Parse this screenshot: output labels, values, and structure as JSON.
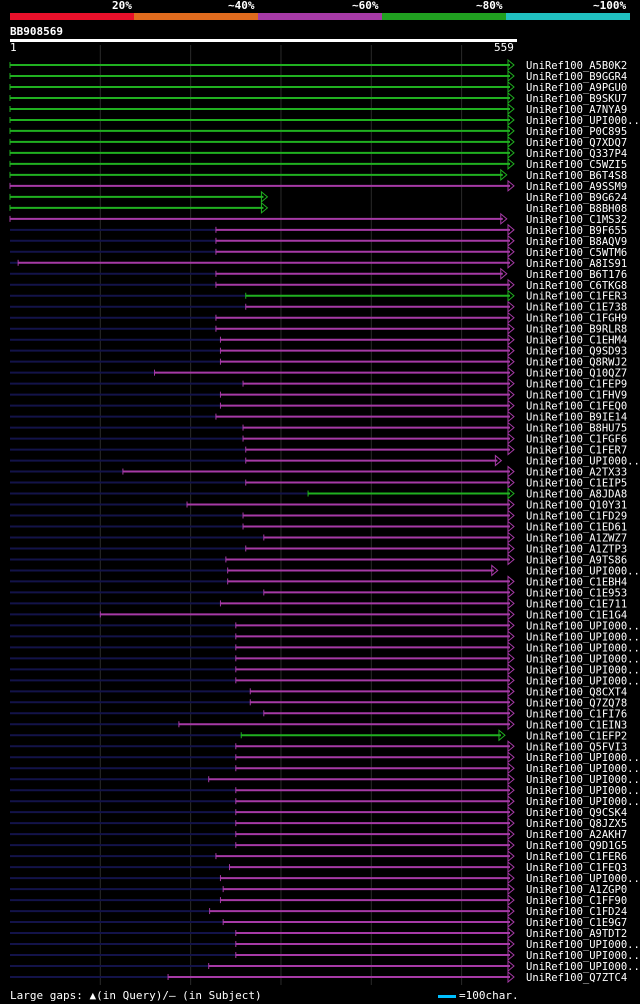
{
  "legend": {
    "labels": [
      "20%",
      "~40%",
      "~60%",
      "~80%",
      "~100%"
    ],
    "colors": [
      "#e8102a",
      "#e06b1e",
      "#a63aa6",
      "#20a020",
      "#20c0c0"
    ]
  },
  "query": {
    "id": "BB908569",
    "start": "1",
    "end": "559"
  },
  "footer": {
    "gaps_text": "Large gaps: ▲(in Query)/— (in Subject)",
    "scale_text": "=100char."
  },
  "chart_data": {
    "type": "alignment",
    "query_length": 559,
    "hits": [
      {
        "label": "UniRef100_A5B0K2",
        "color": "green",
        "start": 1,
        "end": 559,
        "arrow": true
      },
      {
        "label": "UniRef100_B9GGR4",
        "color": "green",
        "start": 1,
        "end": 559,
        "arrow": true
      },
      {
        "label": "UniRef100_A9PGU0",
        "color": "green",
        "start": 1,
        "end": 559,
        "arrow": true
      },
      {
        "label": "UniRef100_B9SKU7",
        "color": "green",
        "start": 1,
        "end": 559,
        "arrow": true
      },
      {
        "label": "UniRef100_A7NYA9",
        "color": "green",
        "start": 1,
        "end": 559,
        "arrow": true
      },
      {
        "label": "UniRef100_UPI000..",
        "color": "green",
        "start": 1,
        "end": 559,
        "arrow": true
      },
      {
        "label": "UniRef100_P0C895",
        "color": "green",
        "start": 1,
        "end": 559,
        "arrow": true
      },
      {
        "label": "UniRef100_Q7XDQ7",
        "color": "green",
        "start": 1,
        "end": 559,
        "arrow": true
      },
      {
        "label": "UniRef100_Q337P4",
        "color": "green",
        "start": 1,
        "end": 559,
        "arrow": true
      },
      {
        "label": "UniRef100_C5WZI5",
        "color": "green",
        "start": 1,
        "end": 559,
        "arrow": true
      },
      {
        "label": "UniRef100_B6T4S8",
        "color": "green",
        "start": 1,
        "end": 551,
        "arrow": true
      },
      {
        "label": "UniRef100_A9SSM9",
        "color": "magenta",
        "start": 1,
        "end": 559,
        "arrow": true
      },
      {
        "label": "UniRef100_B9G624",
        "color": "green",
        "start": 1,
        "end": 286,
        "arrow": true
      },
      {
        "label": "UniRef100_B8BH08",
        "color": "green",
        "start": 1,
        "end": 286,
        "arrow": true
      },
      {
        "label": "UniRef100_C1MS32",
        "color": "magenta",
        "start": 1,
        "end": 551,
        "arrow": true
      },
      {
        "label": "UniRef100_B9F655",
        "color": "magenta",
        "start": 229,
        "end": 559,
        "arrow": true
      },
      {
        "label": "UniRef100_B8AQV9",
        "color": "magenta",
        "start": 229,
        "end": 559,
        "arrow": true
      },
      {
        "label": "UniRef100_C5WTM6",
        "color": "magenta",
        "start": 229,
        "end": 559,
        "arrow": true
      },
      {
        "label": "UniRef100_A8IS91",
        "color": "magenta",
        "start": 10,
        "end": 559,
        "arrow": true
      },
      {
        "label": "UniRef100_B6T176",
        "color": "magenta",
        "start": 229,
        "end": 551,
        "arrow": true
      },
      {
        "label": "UniRef100_C6TKG8",
        "color": "magenta",
        "start": 229,
        "end": 559,
        "arrow": true
      },
      {
        "label": "UniRef100_C1FER3",
        "color": "green",
        "start": 262,
        "end": 559,
        "arrow": true
      },
      {
        "label": "UniRef100_C1E738",
        "color": "magenta",
        "start": 262,
        "end": 559,
        "arrow": true
      },
      {
        "label": "UniRef100_C1FGH9",
        "color": "magenta",
        "start": 229,
        "end": 559,
        "arrow": true
      },
      {
        "label": "UniRef100_B9RLR8",
        "color": "magenta",
        "start": 229,
        "end": 559,
        "arrow": true
      },
      {
        "label": "UniRef100_C1EHM4",
        "color": "magenta",
        "start": 234,
        "end": 559,
        "arrow": true
      },
      {
        "label": "UniRef100_Q9SD93",
        "color": "magenta",
        "start": 234,
        "end": 559,
        "arrow": true
      },
      {
        "label": "UniRef100_Q8RWJ2",
        "color": "magenta",
        "start": 234,
        "end": 559,
        "arrow": true
      },
      {
        "label": "UniRef100_Q10QZ7",
        "color": "magenta",
        "start": 161,
        "end": 559,
        "arrow": true
      },
      {
        "label": "UniRef100_C1FEP9",
        "color": "magenta",
        "start": 259,
        "end": 559,
        "arrow": true
      },
      {
        "label": "UniRef100_C1FHV9",
        "color": "magenta",
        "start": 234,
        "end": 559,
        "arrow": true
      },
      {
        "label": "UniRef100_C1FEQ0",
        "color": "magenta",
        "start": 234,
        "end": 559,
        "arrow": true
      },
      {
        "label": "UniRef100_B9IE14",
        "color": "magenta",
        "start": 229,
        "end": 559,
        "arrow": true
      },
      {
        "label": "UniRef100_B8HU75",
        "color": "magenta",
        "start": 259,
        "end": 559,
        "arrow": true
      },
      {
        "label": "UniRef100_C1FGF6",
        "color": "magenta",
        "start": 259,
        "end": 559,
        "arrow": true
      },
      {
        "label": "UniRef100_C1FER7",
        "color": "magenta",
        "start": 262,
        "end": 559,
        "arrow": true
      },
      {
        "label": "UniRef100_UPI000..",
        "color": "magenta",
        "start": 262,
        "end": 545,
        "arrow": true
      },
      {
        "label": "UniRef100_A2TX33",
        "color": "magenta",
        "start": 126,
        "end": 559,
        "arrow": true
      },
      {
        "label": "UniRef100_C1EIP5",
        "color": "magenta",
        "start": 262,
        "end": 559,
        "arrow": true
      },
      {
        "label": "UniRef100_A8JDA8",
        "color": "green",
        "start": 331,
        "end": 559,
        "arrow": true
      },
      {
        "label": "UniRef100_Q10Y31",
        "color": "magenta",
        "start": 197,
        "end": 559,
        "arrow": true
      },
      {
        "label": "UniRef100_C1FD29",
        "color": "magenta",
        "start": 259,
        "end": 559,
        "arrow": true
      },
      {
        "label": "UniRef100_C1ED61",
        "color": "magenta",
        "start": 259,
        "end": 559,
        "arrow": true
      },
      {
        "label": "UniRef100_A1ZWZ7",
        "color": "magenta",
        "start": 282,
        "end": 559,
        "arrow": true
      },
      {
        "label": "UniRef100_A1ZTP3",
        "color": "magenta",
        "start": 262,
        "end": 559,
        "arrow": true
      },
      {
        "label": "UniRef100_A9TS86",
        "color": "magenta",
        "start": 240,
        "end": 559,
        "arrow": true
      },
      {
        "label": "UniRef100_UPI000..",
        "color": "magenta",
        "start": 242,
        "end": 541,
        "arrow": true
      },
      {
        "label": "UniRef100_C1EBH4",
        "color": "magenta",
        "start": 242,
        "end": 559,
        "arrow": true
      },
      {
        "label": "UniRef100_C1E953",
        "color": "magenta",
        "start": 282,
        "end": 559,
        "arrow": true
      },
      {
        "label": "UniRef100_C1E711",
        "color": "magenta",
        "start": 234,
        "end": 559,
        "arrow": true
      },
      {
        "label": "UniRef100_C1E1G4",
        "color": "magenta",
        "start": 101,
        "end": 559,
        "arrow": true
      },
      {
        "label": "UniRef100_UPI000..",
        "color": "magenta",
        "start": 251,
        "end": 559,
        "arrow": true
      },
      {
        "label": "UniRef100_UPI000..",
        "color": "magenta",
        "start": 251,
        "end": 559,
        "arrow": true
      },
      {
        "label": "UniRef100_UPI000..",
        "color": "magenta",
        "start": 251,
        "end": 559,
        "arrow": true
      },
      {
        "label": "UniRef100_UPI000..",
        "color": "magenta",
        "start": 251,
        "end": 559,
        "arrow": true
      },
      {
        "label": "UniRef100_UPI000..",
        "color": "magenta",
        "start": 251,
        "end": 559,
        "arrow": true
      },
      {
        "label": "UniRef100_UPI000..",
        "color": "magenta",
        "start": 251,
        "end": 559,
        "arrow": true
      },
      {
        "label": "UniRef100_Q8CXT4",
        "color": "magenta",
        "start": 267,
        "end": 559,
        "arrow": true
      },
      {
        "label": "UniRef100_Q7ZQ78",
        "color": "magenta",
        "start": 267,
        "end": 559,
        "arrow": true
      },
      {
        "label": "UniRef100_C1FI76",
        "color": "magenta",
        "start": 282,
        "end": 559,
        "arrow": true
      },
      {
        "label": "UniRef100_C1EIN3",
        "color": "magenta",
        "start": 188,
        "end": 559,
        "arrow": true
      },
      {
        "label": "UniRef100_C1EFP2",
        "color": "green",
        "start": 257,
        "end": 549,
        "arrow": true
      },
      {
        "label": "UniRef100_Q5FVI3",
        "color": "magenta",
        "start": 251,
        "end": 559,
        "arrow": true
      },
      {
        "label": "UniRef100_UPI000..",
        "color": "magenta",
        "start": 251,
        "end": 559,
        "arrow": true
      },
      {
        "label": "UniRef100_UPI000..",
        "color": "magenta",
        "start": 251,
        "end": 559,
        "arrow": true
      },
      {
        "label": "UniRef100_UPI000..",
        "color": "magenta",
        "start": 221,
        "end": 559,
        "arrow": true
      },
      {
        "label": "UniRef100_UPI000..",
        "color": "magenta",
        "start": 251,
        "end": 559,
        "arrow": true
      },
      {
        "label": "UniRef100_UPI000..",
        "color": "magenta",
        "start": 251,
        "end": 559,
        "arrow": true
      },
      {
        "label": "UniRef100_Q9CSK4",
        "color": "magenta",
        "start": 251,
        "end": 559,
        "arrow": true
      },
      {
        "label": "UniRef100_Q8JZX5",
        "color": "magenta",
        "start": 251,
        "end": 559,
        "arrow": true
      },
      {
        "label": "UniRef100_A2AKH7",
        "color": "magenta",
        "start": 251,
        "end": 559,
        "arrow": true
      },
      {
        "label": "UniRef100_Q9D1G5",
        "color": "magenta",
        "start": 251,
        "end": 559,
        "arrow": true
      },
      {
        "label": "UniRef100_C1FER6",
        "color": "magenta",
        "start": 229,
        "end": 559,
        "arrow": true
      },
      {
        "label": "UniRef100_C1FEQ3",
        "color": "magenta",
        "start": 244,
        "end": 559,
        "arrow": true
      },
      {
        "label": "UniRef100_UPI000..",
        "color": "magenta",
        "start": 234,
        "end": 559,
        "arrow": true
      },
      {
        "label": "UniRef100_A1ZGP0",
        "color": "magenta",
        "start": 237,
        "end": 559,
        "arrow": true
      },
      {
        "label": "UniRef100_C1FF90",
        "color": "magenta",
        "start": 234,
        "end": 559,
        "arrow": true
      },
      {
        "label": "UniRef100_C1FD24",
        "color": "magenta",
        "start": 222,
        "end": 559,
        "arrow": true
      },
      {
        "label": "UniRef100_C1E9G7",
        "color": "magenta",
        "start": 237,
        "end": 559,
        "arrow": true
      },
      {
        "label": "UniRef100_A9TDT2",
        "color": "magenta",
        "start": 251,
        "end": 559,
        "arrow": true
      },
      {
        "label": "UniRef100_UPI000..",
        "color": "magenta",
        "start": 251,
        "end": 559,
        "arrow": true
      },
      {
        "label": "UniRef100_UPI000..",
        "color": "magenta",
        "start": 251,
        "end": 559,
        "arrow": true
      },
      {
        "label": "UniRef100_UPI000..",
        "color": "magenta",
        "start": 221,
        "end": 559,
        "arrow": true
      },
      {
        "label": "UniRef100_Q7ZTC4",
        "color": "magenta",
        "start": 176,
        "end": 559,
        "arrow": true
      }
    ]
  }
}
